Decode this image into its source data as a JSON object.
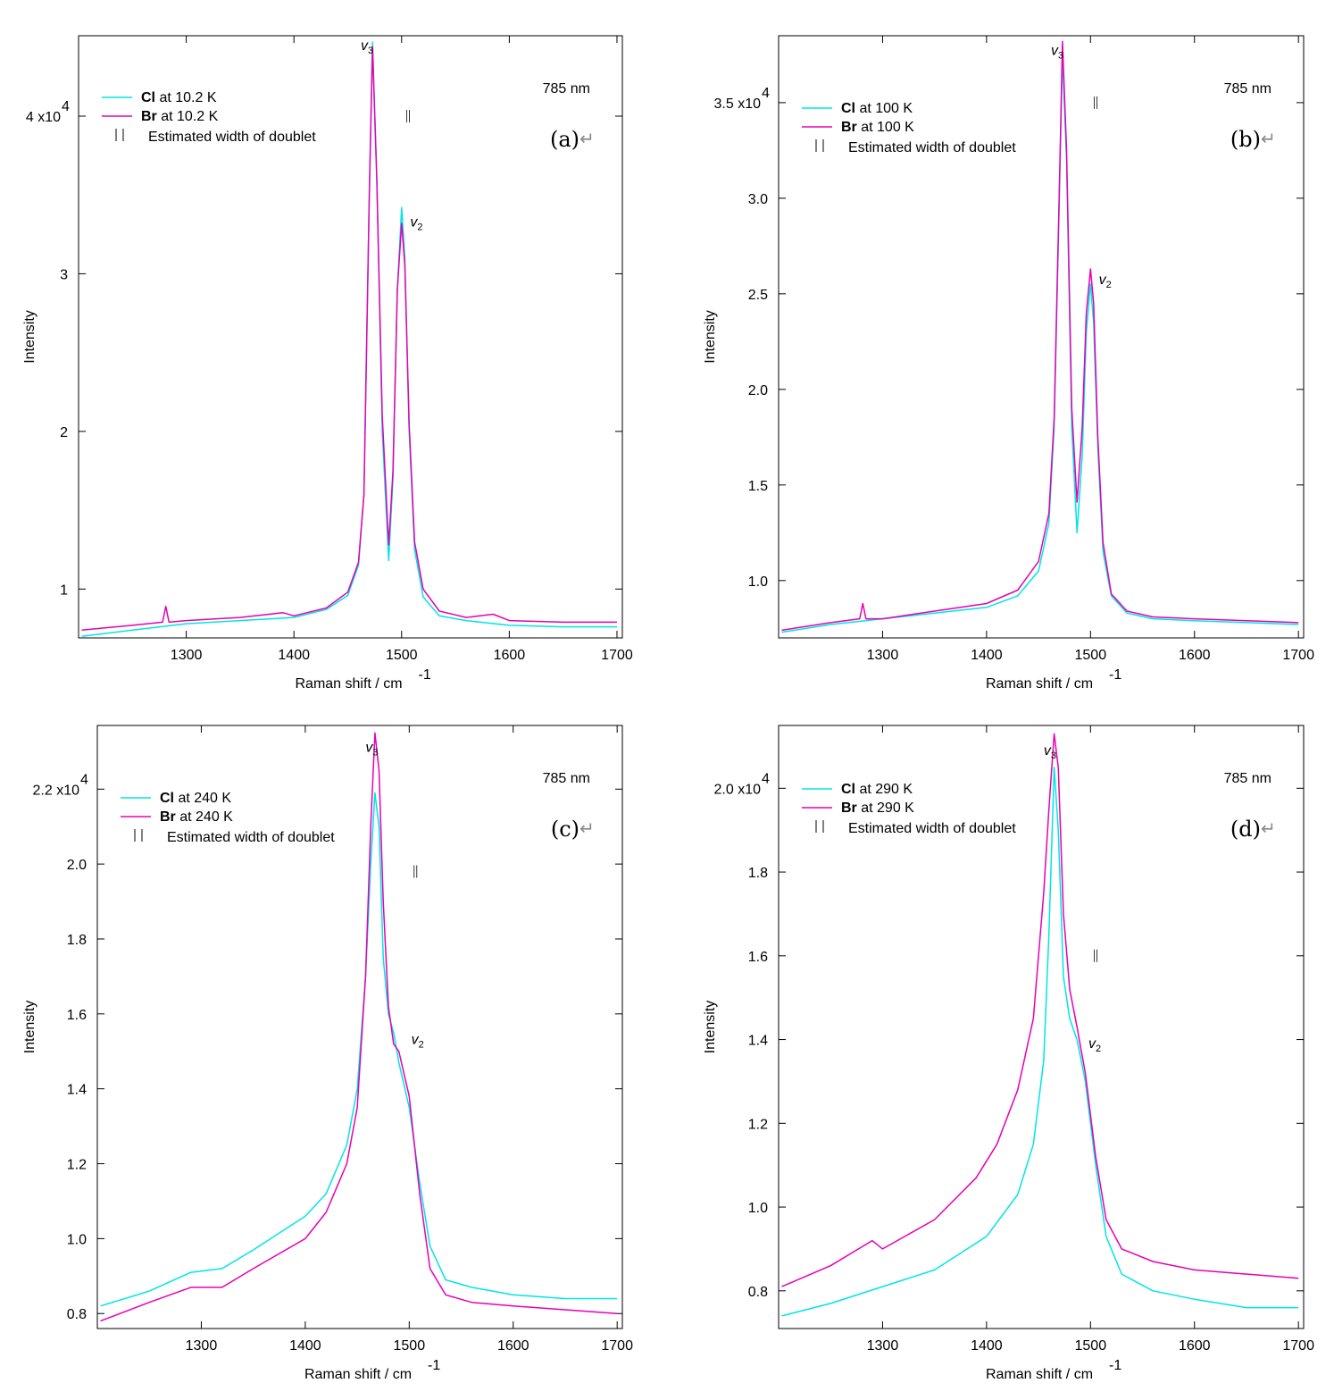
{
  "chart_data": [
    {
      "type": "line",
      "panel_label": "(a)",
      "arrow": "↵",
      "laser": "785 nm",
      "xlabel": "Raman shift / cm",
      "xlabel_sup": "-1",
      "ylabel": "Intensity",
      "xlim": [
        1200,
        1705
      ],
      "ylim": [
        0.69,
        4.51
      ],
      "xticks": [
        1300,
        1400,
        1500,
        1600,
        1700
      ],
      "yticks": [
        1,
        2,
        3,
        4
      ],
      "ytick_labels": [
        "1",
        "2",
        "3",
        "4 x10"
      ],
      "exp_sup": "4",
      "legend": [
        {
          "bold": "Cl",
          "rest": " at 10.2 K"
        },
        {
          "bold": "Br",
          "rest": " at 10.2 K"
        }
      ],
      "width_note": "Estimated width of doublet",
      "doublet_x": 1506,
      "doublet_y": 4.0,
      "peak_labels": [
        {
          "x": 1462,
          "y": 4.42,
          "text": "v",
          "sub": "3"
        },
        {
          "x": 1508,
          "y": 3.3,
          "text": "v",
          "sub": "2"
        }
      ],
      "series": [
        {
          "name": "Cl",
          "color": "#00e5e5",
          "points": [
            [
              1203,
              0.7
            ],
            [
              1250,
              0.74
            ],
            [
              1300,
              0.78
            ],
            [
              1350,
              0.8
            ],
            [
              1400,
              0.82
            ],
            [
              1430,
              0.87
            ],
            [
              1450,
              0.96
            ],
            [
              1460,
              1.15
            ],
            [
              1465,
              1.6
            ],
            [
              1470,
              3.5
            ],
            [
              1473,
              4.47
            ],
            [
              1477,
              3.6
            ],
            [
              1482,
              2.0
            ],
            [
              1488,
              1.18
            ],
            [
              1492,
              1.7
            ],
            [
              1496,
              2.9
            ],
            [
              1500,
              3.42
            ],
            [
              1503,
              3.1
            ],
            [
              1507,
              2.0
            ],
            [
              1512,
              1.25
            ],
            [
              1520,
              0.95
            ],
            [
              1535,
              0.83
            ],
            [
              1560,
              0.8
            ],
            [
              1600,
              0.77
            ],
            [
              1650,
              0.76
            ],
            [
              1700,
              0.76
            ]
          ]
        },
        {
          "name": "Br",
          "color": "#e600b4",
          "points": [
            [
              1203,
              0.74
            ],
            [
              1250,
              0.77
            ],
            [
              1278,
              0.79
            ],
            [
              1281,
              0.89
            ],
            [
              1284,
              0.79
            ],
            [
              1300,
              0.8
            ],
            [
              1350,
              0.82
            ],
            [
              1390,
              0.85
            ],
            [
              1400,
              0.83
            ],
            [
              1430,
              0.88
            ],
            [
              1450,
              0.98
            ],
            [
              1460,
              1.17
            ],
            [
              1465,
              1.6
            ],
            [
              1470,
              3.5
            ],
            [
              1473,
              4.44
            ],
            [
              1477,
              3.6
            ],
            [
              1482,
              2.1
            ],
            [
              1488,
              1.28
            ],
            [
              1492,
              1.75
            ],
            [
              1496,
              2.9
            ],
            [
              1500,
              3.32
            ],
            [
              1503,
              3.05
            ],
            [
              1507,
              2.05
            ],
            [
              1512,
              1.3
            ],
            [
              1520,
              1.0
            ],
            [
              1535,
              0.86
            ],
            [
              1560,
              0.82
            ],
            [
              1585,
              0.84
            ],
            [
              1600,
              0.8
            ],
            [
              1650,
              0.79
            ],
            [
              1700,
              0.79
            ]
          ]
        }
      ]
    },
    {
      "type": "line",
      "panel_label": "(b)",
      "arrow": "↵",
      "laser": "785 nm",
      "xlabel": "Raman shift / cm",
      "xlabel_sup": "-1",
      "ylabel": "Intensity",
      "xlim": [
        1200,
        1705
      ],
      "ylim": [
        0.7,
        3.85
      ],
      "xticks": [
        1300,
        1400,
        1500,
        1600,
        1700
      ],
      "yticks": [
        1.0,
        1.5,
        2.0,
        2.5,
        3.0,
        3.5
      ],
      "ytick_labels": [
        "1.0",
        "1.5",
        "2.0",
        "2.5",
        "3.0",
        "3.5 x10"
      ],
      "exp_sup": "4",
      "legend": [
        {
          "bold": "Cl",
          "rest": " at 100 K"
        },
        {
          "bold": "Br",
          "rest": " at 100 K"
        }
      ],
      "width_note": "Estimated width of doublet",
      "doublet_x": 1505,
      "doublet_y": 3.5,
      "peak_labels": [
        {
          "x": 1462,
          "y": 3.75,
          "text": "v",
          "sub": "3"
        },
        {
          "x": 1508,
          "y": 2.55,
          "text": "v",
          "sub": "2"
        }
      ],
      "series": [
        {
          "name": "Cl",
          "color": "#00e5e5",
          "points": [
            [
              1203,
              0.73
            ],
            [
              1250,
              0.77
            ],
            [
              1300,
              0.8
            ],
            [
              1350,
              0.83
            ],
            [
              1400,
              0.86
            ],
            [
              1430,
              0.92
            ],
            [
              1450,
              1.05
            ],
            [
              1460,
              1.3
            ],
            [
              1465,
              1.8
            ],
            [
              1470,
              3.0
            ],
            [
              1473,
              3.75
            ],
            [
              1477,
              3.2
            ],
            [
              1482,
              1.8
            ],
            [
              1487,
              1.25
            ],
            [
              1492,
              1.65
            ],
            [
              1496,
              2.3
            ],
            [
              1500,
              2.55
            ],
            [
              1503,
              2.35
            ],
            [
              1507,
              1.7
            ],
            [
              1512,
              1.15
            ],
            [
              1520,
              0.92
            ],
            [
              1535,
              0.83
            ],
            [
              1560,
              0.8
            ],
            [
              1600,
              0.79
            ],
            [
              1650,
              0.78
            ],
            [
              1700,
              0.77
            ]
          ]
        },
        {
          "name": "Br",
          "color": "#e600b4",
          "points": [
            [
              1203,
              0.74
            ],
            [
              1250,
              0.78
            ],
            [
              1278,
              0.8
            ],
            [
              1281,
              0.88
            ],
            [
              1284,
              0.8
            ],
            [
              1300,
              0.8
            ],
            [
              1350,
              0.84
            ],
            [
              1400,
              0.88
            ],
            [
              1430,
              0.95
            ],
            [
              1450,
              1.1
            ],
            [
              1460,
              1.35
            ],
            [
              1465,
              1.85
            ],
            [
              1470,
              3.05
            ],
            [
              1473,
              3.82
            ],
            [
              1477,
              3.25
            ],
            [
              1482,
              1.9
            ],
            [
              1487,
              1.41
            ],
            [
              1492,
              1.8
            ],
            [
              1496,
              2.4
            ],
            [
              1500,
              2.63
            ],
            [
              1503,
              2.45
            ],
            [
              1507,
              1.75
            ],
            [
              1512,
              1.2
            ],
            [
              1520,
              0.93
            ],
            [
              1535,
              0.84
            ],
            [
              1560,
              0.81
            ],
            [
              1600,
              0.8
            ],
            [
              1650,
              0.79
            ],
            [
              1700,
              0.78
            ]
          ]
        }
      ]
    },
    {
      "type": "line",
      "panel_label": "(c)",
      "arrow": "↵",
      "laser": "785 nm",
      "xlabel": "Raman shift / cm",
      "xlabel_sup": "-1",
      "ylabel": "Intensity",
      "xlim": [
        1200,
        1705
      ],
      "ylim": [
        0.76,
        2.37
      ],
      "xticks": [
        1300,
        1400,
        1500,
        1600,
        1700
      ],
      "yticks": [
        0.8,
        1.0,
        1.2,
        1.4,
        1.6,
        1.8,
        2.0,
        2.2
      ],
      "ytick_labels": [
        "0.8",
        "1.0",
        "1.2",
        "1.4",
        "1.6",
        "1.8",
        "2.0",
        "2.2 x10"
      ],
      "exp_sup": "4",
      "legend": [
        {
          "bold": "Cl",
          "rest": " at 240 K"
        },
        {
          "bold": "Br",
          "rest": " at 240 K"
        }
      ],
      "width_note": "Estimated width of doublet",
      "doublet_x": 1506,
      "doublet_y": 1.98,
      "peak_labels": [
        {
          "x": 1458,
          "y": 2.3,
          "text": "v",
          "sub": "3"
        },
        {
          "x": 1502,
          "y": 1.52,
          "text": "v",
          "sub": "2"
        }
      ],
      "series": [
        {
          "name": "Cl",
          "color": "#00e5e5",
          "points": [
            [
              1203,
              0.82
            ],
            [
              1250,
              0.86
            ],
            [
              1290,
              0.91
            ],
            [
              1320,
              0.92
            ],
            [
              1350,
              0.97
            ],
            [
              1400,
              1.06
            ],
            [
              1420,
              1.12
            ],
            [
              1440,
              1.25
            ],
            [
              1450,
              1.4
            ],
            [
              1458,
              1.7
            ],
            [
              1463,
              2.0
            ],
            [
              1467,
              2.19
            ],
            [
              1471,
              2.1
            ],
            [
              1475,
              1.75
            ],
            [
              1480,
              1.6
            ],
            [
              1485,
              1.55
            ],
            [
              1490,
              1.47
            ],
            [
              1500,
              1.35
            ],
            [
              1510,
              1.15
            ],
            [
              1520,
              0.98
            ],
            [
              1535,
              0.89
            ],
            [
              1560,
              0.87
            ],
            [
              1600,
              0.85
            ],
            [
              1650,
              0.84
            ],
            [
              1700,
              0.84
            ]
          ]
        },
        {
          "name": "Br",
          "color": "#e600b4",
          "points": [
            [
              1203,
              0.78
            ],
            [
              1250,
              0.83
            ],
            [
              1290,
              0.87
            ],
            [
              1320,
              0.87
            ],
            [
              1350,
              0.92
            ],
            [
              1400,
              1.0
            ],
            [
              1420,
              1.07
            ],
            [
              1440,
              1.2
            ],
            [
              1450,
              1.35
            ],
            [
              1458,
              1.7
            ],
            [
              1463,
              2.1
            ],
            [
              1467,
              2.35
            ],
            [
              1471,
              2.25
            ],
            [
              1475,
              1.9
            ],
            [
              1480,
              1.62
            ],
            [
              1485,
              1.52
            ],
            [
              1490,
              1.5
            ],
            [
              1500,
              1.38
            ],
            [
              1510,
              1.12
            ],
            [
              1520,
              0.92
            ],
            [
              1535,
              0.85
            ],
            [
              1560,
              0.83
            ],
            [
              1600,
              0.82
            ],
            [
              1650,
              0.81
            ],
            [
              1700,
              0.8
            ]
          ]
        }
      ]
    },
    {
      "type": "line",
      "panel_label": "(d)",
      "arrow": "↵",
      "laser": "785 nm",
      "xlabel": "Raman shift / cm",
      "xlabel_sup": "-1",
      "ylabel": "Intensity",
      "xlim": [
        1200,
        1705
      ],
      "ylim": [
        0.71,
        2.15
      ],
      "xticks": [
        1300,
        1400,
        1500,
        1600,
        1700
      ],
      "yticks": [
        0.8,
        1.0,
        1.2,
        1.4,
        1.6,
        1.8,
        2.0
      ],
      "ytick_labels": [
        "0.8",
        "1.0",
        "1.2",
        "1.4",
        "1.6",
        "1.8",
        "2.0 x10"
      ],
      "exp_sup": "4",
      "legend": [
        {
          "bold": "Cl",
          "rest": " at 290 K"
        },
        {
          "bold": "Br",
          "rest": " at 290 K"
        }
      ],
      "width_note": "Estimated width of doublet",
      "doublet_x": 1505,
      "doublet_y": 1.6,
      "peak_labels": [
        {
          "x": 1455,
          "y": 2.08,
          "text": "v",
          "sub": "3"
        },
        {
          "x": 1498,
          "y": 1.38,
          "text": "v",
          "sub": "2"
        }
      ],
      "series": [
        {
          "name": "Cl",
          "color": "#00e5e5",
          "points": [
            [
              1203,
              0.74
            ],
            [
              1250,
              0.77
            ],
            [
              1300,
              0.81
            ],
            [
              1350,
              0.85
            ],
            [
              1400,
              0.93
            ],
            [
              1430,
              1.03
            ],
            [
              1445,
              1.15
            ],
            [
              1455,
              1.35
            ],
            [
              1460,
              1.65
            ],
            [
              1465,
              2.05
            ],
            [
              1469,
              1.9
            ],
            [
              1474,
              1.55
            ],
            [
              1480,
              1.45
            ],
            [
              1487,
              1.4
            ],
            [
              1495,
              1.3
            ],
            [
              1505,
              1.1
            ],
            [
              1515,
              0.93
            ],
            [
              1530,
              0.84
            ],
            [
              1560,
              0.8
            ],
            [
              1600,
              0.78
            ],
            [
              1650,
              0.76
            ],
            [
              1700,
              0.76
            ]
          ]
        },
        {
          "name": "Br",
          "color": "#e600b4",
          "points": [
            [
              1203,
              0.81
            ],
            [
              1250,
              0.86
            ],
            [
              1290,
              0.92
            ],
            [
              1300,
              0.9
            ],
            [
              1350,
              0.97
            ],
            [
              1390,
              1.07
            ],
            [
              1410,
              1.15
            ],
            [
              1430,
              1.28
            ],
            [
              1445,
              1.45
            ],
            [
              1455,
              1.75
            ],
            [
              1460,
              1.95
            ],
            [
              1465,
              2.13
            ],
            [
              1469,
              2.05
            ],
            [
              1474,
              1.7
            ],
            [
              1480,
              1.52
            ],
            [
              1487,
              1.43
            ],
            [
              1495,
              1.32
            ],
            [
              1505,
              1.12
            ],
            [
              1515,
              0.97
            ],
            [
              1530,
              0.9
            ],
            [
              1560,
              0.87
            ],
            [
              1600,
              0.85
            ],
            [
              1650,
              0.84
            ],
            [
              1700,
              0.83
            ]
          ]
        }
      ]
    }
  ]
}
